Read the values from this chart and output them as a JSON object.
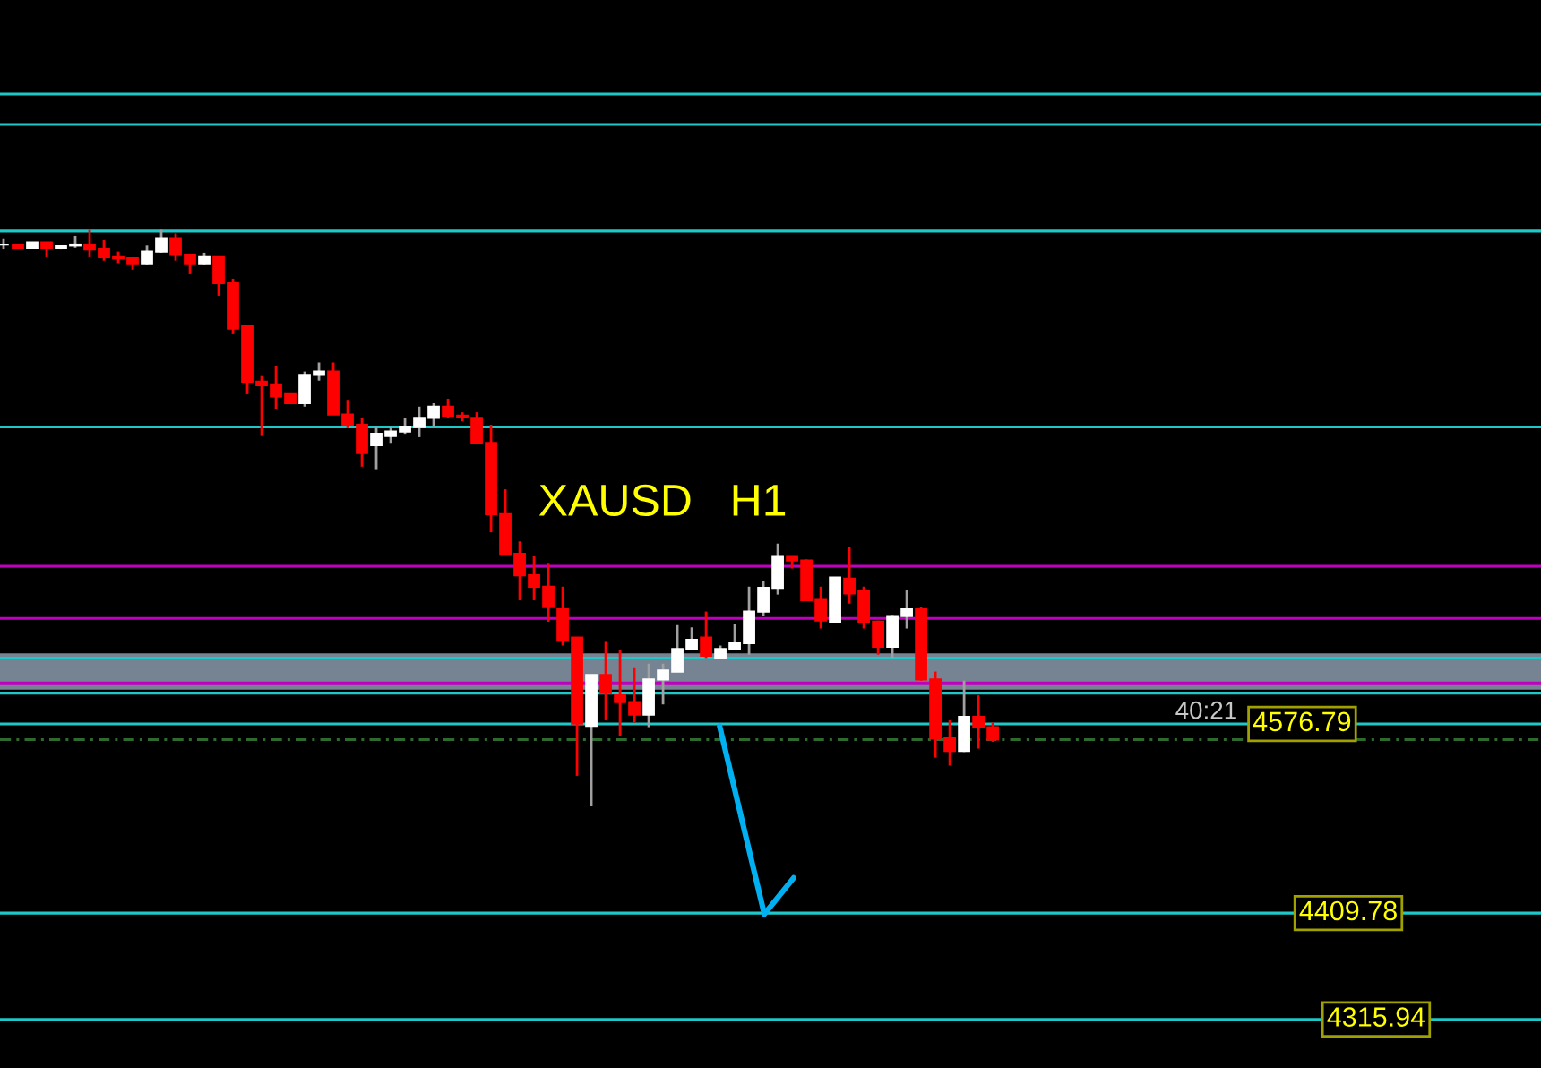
{
  "chart_data": {
    "type": "candlestick",
    "title": "XAUSD   H1",
    "categories": [
      null,
      null,
      null,
      null,
      null,
      null,
      null,
      null,
      null,
      null,
      null,
      null,
      null,
      null,
      null,
      null,
      null,
      null,
      null,
      null,
      null,
      null,
      null,
      null,
      null,
      null,
      null,
      null,
      null,
      null,
      null,
      null,
      null,
      null,
      null,
      null,
      null,
      null,
      null,
      null,
      null,
      null,
      null,
      null,
      null,
      null,
      null,
      null,
      null,
      null,
      null,
      null,
      null,
      null,
      null,
      null,
      null,
      null,
      null,
      null,
      null,
      null,
      null,
      null,
      null,
      null,
      null,
      null,
      null,
      null
    ],
    "ohlc": [
      [
        5000,
        5005,
        4996,
        5000
      ],
      [
        5000,
        5000,
        4996,
        4997
      ],
      [
        4997,
        5002,
        4997,
        5002
      ],
      [
        5002,
        5002,
        4989,
        4997
      ],
      [
        4997,
        4999,
        4996,
        4999
      ],
      [
        4999,
        5008,
        4997,
        5000
      ],
      [
        5000,
        5013,
        4989,
        4996
      ],
      [
        4996,
        5004,
        4986,
        4989
      ],
      [
        4989,
        4994,
        4983,
        4988
      ],
      [
        4988,
        4988,
        4978,
        4983
      ],
      [
        4983,
        4999,
        4982,
        4994
      ],
      [
        4994,
        5013,
        4993,
        5005
      ],
      [
        5005,
        5010,
        4986,
        4991
      ],
      [
        4991,
        4991,
        4974,
        4983
      ],
      [
        4983,
        4993,
        4982,
        4989
      ],
      [
        4989,
        4989,
        4955,
        4966
      ],
      [
        4966,
        4970,
        4921,
        4926
      ],
      [
        4928,
        4928,
        4868,
        4879
      ],
      [
        4879,
        4884,
        4831,
        4876
      ],
      [
        4876,
        4893,
        4855,
        4866
      ],
      [
        4868,
        4868,
        4860,
        4860
      ],
      [
        4860,
        4888,
        4857,
        4885
      ],
      [
        4885,
        4896,
        4880,
        4888
      ],
      [
        4888,
        4896,
        4850,
        4850
      ],
      [
        4850,
        4863,
        4838,
        4841
      ],
      [
        4841,
        4847,
        4804,
        4816
      ],
      [
        4823,
        4839,
        4801,
        4833
      ],
      [
        4831,
        4839,
        4825,
        4835
      ],
      [
        4835,
        4847,
        4833,
        4839
      ],
      [
        4839,
        4857,
        4830,
        4847
      ],
      [
        4847,
        4860,
        4839,
        4857
      ],
      [
        4857,
        4864,
        4847,
        4849
      ],
      [
        4849,
        4852,
        4844,
        4848
      ],
      [
        4847,
        4852,
        4825,
        4825
      ],
      [
        4825,
        4841,
        4746,
        4762
      ],
      [
        4762,
        4784,
        4727,
        4727
      ],
      [
        4727,
        4738,
        4686,
        4708
      ],
      [
        4708,
        4725,
        4686,
        4698
      ],
      [
        4698,
        4719,
        4667,
        4680
      ],
      [
        4678,
        4698,
        4646,
        4651
      ],
      [
        4653,
        4653,
        4531,
        4577
      ],
      [
        4575,
        4620,
        4504,
        4620
      ],
      [
        4620,
        4650,
        4580,
        4604
      ],
      [
        4602,
        4642,
        4566,
        4596
      ],
      [
        4596,
        4626,
        4578,
        4585
      ],
      [
        4585,
        4630,
        4574,
        4616
      ],
      [
        4616,
        4630,
        4594,
        4624
      ],
      [
        4623,
        4664,
        4623,
        4643
      ],
      [
        4643,
        4662,
        4643,
        4651
      ],
      [
        4653,
        4676,
        4635,
        4637
      ],
      [
        4635,
        4646,
        4634,
        4643
      ],
      [
        4643,
        4665,
        4642,
        4648
      ],
      [
        4648,
        4698,
        4638,
        4676
      ],
      [
        4676,
        4703,
        4672,
        4697
      ],
      [
        4697,
        4736,
        4691,
        4725
      ],
      [
        4725,
        4725,
        4714,
        4721
      ],
      [
        4721,
        4722,
        4686,
        4686
      ],
      [
        4687,
        4698,
        4661,
        4668
      ],
      [
        4667,
        4706,
        4667,
        4706
      ],
      [
        4705,
        4733,
        4683,
        4692
      ],
      [
        4694,
        4698,
        4661,
        4667
      ],
      [
        4667,
        4668,
        4638,
        4645
      ],
      [
        4645,
        4673,
        4635,
        4672
      ],
      [
        4672,
        4695,
        4661,
        4678
      ],
      [
        4678,
        4680,
        4615,
        4616
      ],
      [
        4616,
        4623,
        4547,
        4564
      ],
      [
        4564,
        4580,
        4540,
        4553
      ],
      [
        4553,
        4615,
        4552,
        4583
      ],
      [
        4583,
        4602,
        4555,
        4574
      ],
      [
        4574,
        4578,
        4561,
        4563
      ]
    ],
    "colors": [
      "#ffffff",
      "#ff0000",
      "#ffffff",
      "#ff0000",
      "#ffffff",
      "#ffffff",
      "#ff0000",
      "#ff0000",
      "#ff0000",
      "#ff0000",
      "#ffffff",
      "#ffffff",
      "#ff0000",
      "#ff0000",
      "#ffffff",
      "#ff0000",
      "#ff0000",
      "#ff0000",
      "#ff0000",
      "#ff0000",
      "#ff0000",
      "#ffffff",
      "#ffffff",
      "#ff0000",
      "#ff0000",
      "#ff0000",
      "#ffffff",
      "#ffffff",
      "#ffffff",
      "#ffffff",
      "#ffffff",
      "#ff0000",
      "#ff0000",
      "#ff0000",
      "#ff0000",
      "#ff0000",
      "#ff0000",
      "#ff0000",
      "#ff0000",
      "#ff0000",
      "#ff0000",
      "#ffffff",
      "#ff0000",
      "#ff0000",
      "#ff0000",
      "#ffffff",
      "#ffffff",
      "#ffffff",
      "#ffffff",
      "#ff0000",
      "#ffffff",
      "#ffffff",
      "#ffffff",
      "#ffffff",
      "#ffffff",
      "#ff0000",
      "#ff0000",
      "#ff0000",
      "#ffffff",
      "#ff0000",
      "#ff0000",
      "#ff0000",
      "#ffffff",
      "#ffffff",
      "#ff0000",
      "#ff0000",
      "#ff0000",
      "#ffffff",
      "#ff0000",
      "#ff0000"
    ],
    "ylim": [
      4273,
      5216
    ],
    "tick_labels": false,
    "ref_lines": [
      {
        "axis": "y",
        "value": 5133,
        "color": "#1ec8c8"
      },
      {
        "axis": "y",
        "value": 5106,
        "color": "#1ec8c8"
      },
      {
        "axis": "y",
        "value": 5012,
        "color": "#1ec8c8"
      },
      {
        "axis": "y",
        "value": 4839,
        "color": "#1ec8c8"
      },
      {
        "axis": "y",
        "value": 4716,
        "color": "#c000c0"
      },
      {
        "axis": "y",
        "value": 4670,
        "color": "#c000c0"
      },
      {
        "axis": "y",
        "value": 4635,
        "color": "#1ec8c8"
      },
      {
        "axis": "y",
        "value": 4613,
        "color": "#c000c0"
      },
      {
        "axis": "y",
        "value": 4604,
        "color": "#1ec8c8"
      },
      {
        "axis": "y",
        "value": 4576.79,
        "label": "4576.79",
        "color": "#1ec8c8"
      },
      {
        "axis": "y",
        "value": 4563,
        "color": "#2e6b2e",
        "line_style": "dashed"
      },
      {
        "axis": "y",
        "value": 4409.78,
        "label": "4409.78",
        "color": "#1ec8c8"
      },
      {
        "axis": "y",
        "value": 4315.94,
        "label": "4315.94",
        "color": "#1ec8c8"
      }
    ],
    "bands": [
      {
        "axis": "y",
        "from": 4607,
        "to": 4639,
        "color": "#8a9aab"
      }
    ],
    "annotations": [
      "40:21"
    ]
  }
}
